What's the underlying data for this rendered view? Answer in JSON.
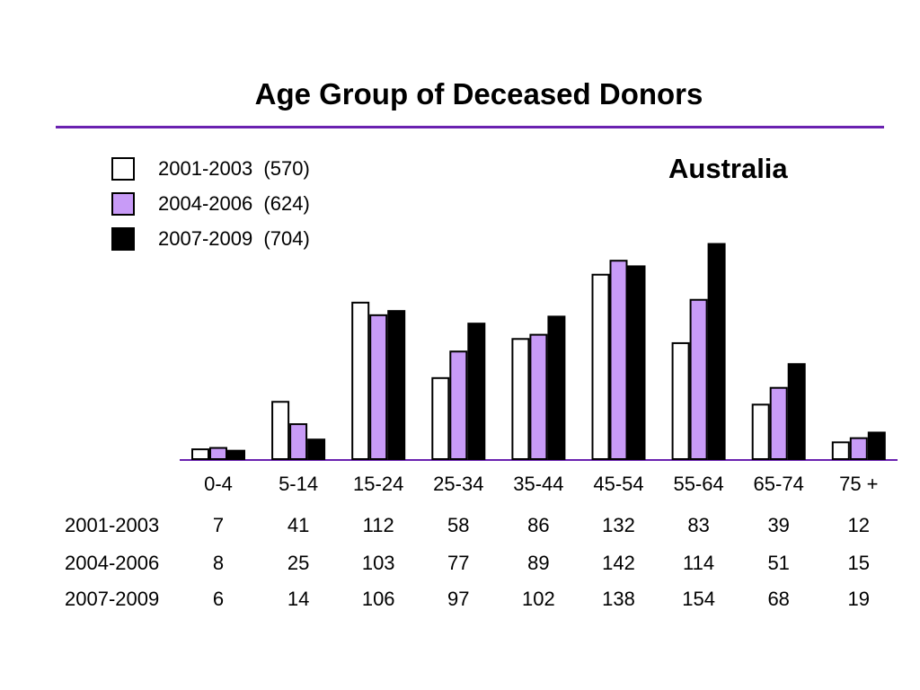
{
  "title": "Age Group of Deceased Donors",
  "region": "Australia",
  "chart_data": {
    "type": "bar",
    "title": "Age Group of Deceased Donors",
    "xlabel": "",
    "ylabel": "",
    "ylim": [
      0,
      160
    ],
    "grid": false,
    "legend_position": "top-left",
    "categories": [
      "0-4",
      "5-14",
      "15-24",
      "25-34",
      "35-44",
      "45-54",
      "55-64",
      "65-74",
      "75 +"
    ],
    "series": [
      {
        "name": "2001-2003",
        "legend_label": "2001-2003  (570)",
        "table_label": "2001-2003",
        "color": "#ffffff",
        "values": [
          7,
          41,
          112,
          58,
          86,
          132,
          83,
          39,
          12
        ]
      },
      {
        "name": "2004-2006",
        "legend_label": "2004-2006  (624)",
        "table_label": "2004-2006",
        "color": "#c89bf7",
        "values": [
          8,
          25,
          103,
          77,
          89,
          142,
          114,
          51,
          15
        ]
      },
      {
        "name": "2007-2009",
        "legend_label": "2007-2009  (704)",
        "table_label": "2007-2009",
        "color": "#000000",
        "values": [
          6,
          14,
          106,
          97,
          102,
          138,
          154,
          68,
          19
        ]
      }
    ]
  }
}
